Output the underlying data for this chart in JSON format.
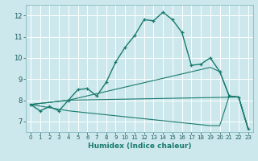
{
  "title": "",
  "xlabel": "Humidex (Indice chaleur)",
  "bg_color": "#cce8ec",
  "grid_color": "#ffffff",
  "line_color": "#1a7a6e",
  "xlim": [
    -0.5,
    23.5
  ],
  "ylim": [
    6.5,
    12.5
  ],
  "xticks": [
    0,
    1,
    2,
    3,
    4,
    5,
    6,
    7,
    8,
    9,
    10,
    11,
    12,
    13,
    14,
    15,
    16,
    17,
    18,
    19,
    20,
    21,
    22,
    23
  ],
  "yticks": [
    7,
    8,
    9,
    10,
    11,
    12
  ],
  "curve1_x": [
    0,
    1,
    2,
    3,
    4,
    5,
    6,
    7,
    8,
    9,
    10,
    11,
    12,
    13,
    14,
    15,
    16,
    17,
    18,
    19,
    20,
    21,
    22,
    23
  ],
  "curve1_y": [
    7.8,
    7.5,
    7.7,
    7.5,
    8.0,
    8.5,
    8.55,
    8.2,
    8.85,
    9.8,
    10.5,
    11.05,
    11.8,
    11.75,
    12.15,
    11.8,
    11.2,
    9.65,
    9.7,
    10.0,
    9.35,
    8.2,
    8.15,
    6.65
  ],
  "curve2_x": [
    0,
    4,
    22,
    23
  ],
  "curve2_y": [
    7.8,
    8.0,
    8.15,
    6.65
  ],
  "curve3_x": [
    0,
    4,
    19,
    20,
    21,
    22,
    23
  ],
  "curve3_y": [
    7.8,
    8.0,
    9.55,
    9.35,
    8.2,
    8.15,
    6.65
  ],
  "curve4_x": [
    0,
    4,
    19,
    20,
    21,
    22,
    23
  ],
  "curve4_y": [
    7.8,
    7.5,
    6.8,
    6.8,
    8.2,
    8.15,
    6.65
  ]
}
